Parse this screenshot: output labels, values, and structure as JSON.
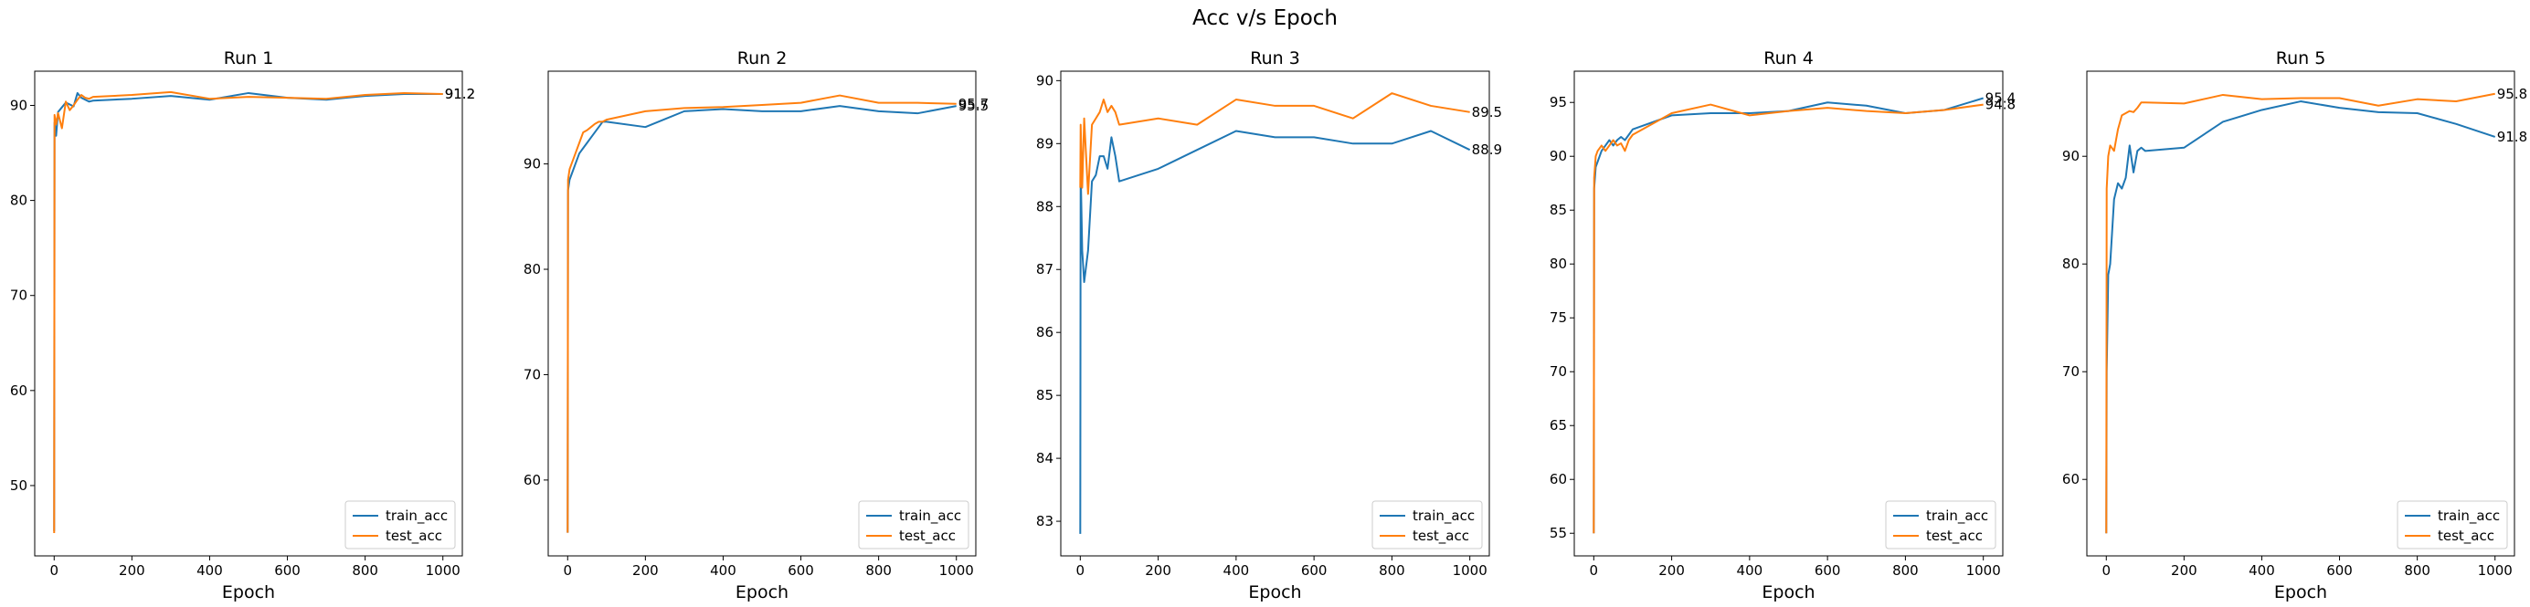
{
  "figure_title": "Acc v/s Epoch",
  "colors": {
    "train": "#1f77b4",
    "test": "#ff7f0e"
  },
  "chart_data": [
    {
      "type": "line",
      "title": "Run 1",
      "xlabel": "Epoch",
      "ylabel": "",
      "xlim": [
        -50,
        1050
      ],
      "ylim": [
        42.6,
        93.6
      ],
      "xticks": [
        0,
        200,
        400,
        600,
        800,
        1000
      ],
      "yticks": [
        50,
        60,
        70,
        80,
        90
      ],
      "legend": "lower-right",
      "series": [
        {
          "name": "train_acc",
          "x": [
            0,
            1,
            5,
            10,
            20,
            30,
            40,
            50,
            60,
            70,
            80,
            90,
            100,
            200,
            300,
            400,
            500,
            600,
            700,
            800,
            900,
            1000
          ],
          "y": [
            45.2,
            88.2,
            86.8,
            89.3,
            89.8,
            90.3,
            90.1,
            89.9,
            91.3,
            90.8,
            90.6,
            90.4,
            90.5,
            90.7,
            91.0,
            90.6,
            91.3,
            90.8,
            90.6,
            91.0,
            91.2,
            91.2
          ]
        },
        {
          "name": "test_acc",
          "x": [
            0,
            1,
            5,
            10,
            20,
            30,
            40,
            50,
            60,
            70,
            80,
            90,
            100,
            200,
            300,
            400,
            500,
            600,
            700,
            800,
            900,
            1000
          ],
          "y": [
            45.0,
            89.0,
            88.0,
            89.2,
            87.6,
            90.4,
            89.5,
            90.0,
            90.6,
            91.1,
            90.8,
            90.7,
            90.9,
            91.1,
            91.4,
            90.7,
            90.9,
            90.8,
            90.7,
            91.1,
            91.3,
            91.2
          ]
        }
      ],
      "end_labels": [
        "91.2",
        "91.2"
      ]
    },
    {
      "type": "line",
      "title": "Run 2",
      "xlabel": "Epoch",
      "ylabel": "",
      "xlim": [
        -50,
        1050
      ],
      "ylim": [
        52.8,
        98.8
      ],
      "xticks": [
        0,
        200,
        400,
        600,
        800,
        1000
      ],
      "yticks": [
        60,
        70,
        80,
        90
      ],
      "legend": "lower-right",
      "series": [
        {
          "name": "train_acc",
          "x": [
            0,
            1,
            5,
            10,
            20,
            30,
            40,
            50,
            60,
            70,
            80,
            90,
            100,
            200,
            300,
            400,
            500,
            600,
            700,
            800,
            900,
            1000
          ],
          "y": [
            55.0,
            87.5,
            88.5,
            89.0,
            90.0,
            91.0,
            91.5,
            92.0,
            92.5,
            93.0,
            93.5,
            94.0,
            94.0,
            93.5,
            95.0,
            95.2,
            95.0,
            95.0,
            95.5,
            95.0,
            94.8,
            95.5
          ]
        },
        {
          "name": "test_acc",
          "x": [
            0,
            1,
            5,
            10,
            20,
            30,
            40,
            50,
            60,
            70,
            80,
            90,
            100,
            200,
            300,
            400,
            500,
            600,
            700,
            800,
            900,
            1000
          ],
          "y": [
            55.0,
            88.5,
            89.5,
            90.0,
            91.0,
            92.0,
            93.0,
            93.2,
            93.5,
            93.8,
            94.0,
            94.0,
            94.2,
            95.0,
            95.3,
            95.4,
            95.6,
            95.8,
            96.5,
            95.8,
            95.8,
            95.7
          ]
        }
      ],
      "end_labels": [
        "95.5",
        "95.7"
      ]
    },
    {
      "type": "line",
      "title": "Run 3",
      "xlabel": "Epoch",
      "ylabel": "",
      "xlim": [
        -50,
        1050
      ],
      "ylim": [
        82.45,
        90.15
      ],
      "xticks": [
        0,
        200,
        400,
        600,
        800,
        1000
      ],
      "yticks": [
        83,
        84,
        85,
        86,
        87,
        88,
        89,
        90
      ],
      "legend": "lower-right",
      "series": [
        {
          "name": "train_acc",
          "x": [
            0,
            1,
            5,
            10,
            20,
            30,
            40,
            50,
            60,
            70,
            80,
            90,
            100,
            200,
            300,
            400,
            500,
            600,
            700,
            800,
            900,
            1000
          ],
          "y": [
            82.8,
            88.6,
            87.3,
            86.8,
            87.3,
            88.4,
            88.5,
            88.8,
            88.8,
            88.6,
            89.1,
            88.8,
            88.4,
            88.6,
            88.9,
            89.2,
            89.1,
            89.1,
            89.0,
            89.0,
            89.2,
            88.9
          ]
        },
        {
          "name": "test_acc",
          "x": [
            0,
            1,
            5,
            10,
            20,
            30,
            40,
            50,
            60,
            70,
            80,
            90,
            100,
            200,
            300,
            400,
            500,
            600,
            700,
            800,
            900,
            1000
          ],
          "y": [
            88.3,
            89.3,
            88.3,
            89.4,
            88.2,
            89.3,
            89.4,
            89.5,
            89.7,
            89.5,
            89.6,
            89.5,
            89.3,
            89.4,
            89.3,
            89.7,
            89.6,
            89.6,
            89.4,
            89.8,
            89.6,
            89.5
          ]
        }
      ],
      "end_labels": [
        "88.9",
        "89.5"
      ]
    },
    {
      "type": "line",
      "title": "Run 4",
      "xlabel": "Epoch",
      "ylabel": "",
      "xlim": [
        -50,
        1050
      ],
      "ylim": [
        52.9,
        97.9
      ],
      "xticks": [
        0,
        200,
        400,
        600,
        800,
        1000
      ],
      "yticks": [
        55,
        60,
        65,
        70,
        75,
        80,
        85,
        90,
        95
      ],
      "legend": "lower-right",
      "series": [
        {
          "name": "train_acc",
          "x": [
            0,
            1,
            5,
            10,
            20,
            30,
            40,
            50,
            60,
            70,
            80,
            90,
            100,
            200,
            300,
            400,
            500,
            600,
            700,
            800,
            900,
            1000
          ],
          "y": [
            55.0,
            87.0,
            89.0,
            89.5,
            90.5,
            91.0,
            91.5,
            91.0,
            91.5,
            91.8,
            91.5,
            92.0,
            92.5,
            93.8,
            94.0,
            94.0,
            94.2,
            95.0,
            94.7,
            94.0,
            94.3,
            95.4
          ]
        },
        {
          "name": "test_acc",
          "x": [
            0,
            1,
            5,
            10,
            20,
            30,
            40,
            50,
            60,
            70,
            80,
            90,
            100,
            200,
            300,
            400,
            500,
            600,
            700,
            800,
            900,
            1000
          ],
          "y": [
            55.0,
            88.0,
            90.0,
            90.5,
            91.0,
            90.5,
            91.0,
            91.5,
            91.0,
            91.2,
            90.5,
            91.5,
            92.0,
            94.0,
            94.8,
            93.8,
            94.2,
            94.5,
            94.2,
            94.0,
            94.3,
            94.8
          ]
        }
      ],
      "end_labels": [
        "95.4",
        "94.8"
      ]
    },
    {
      "type": "line",
      "title": "Run 5",
      "xlabel": "Epoch",
      "ylabel": "",
      "xlim": [
        -50,
        1050
      ],
      "ylim": [
        52.9,
        97.9
      ],
      "xticks": [
        0,
        200,
        400,
        600,
        800,
        1000
      ],
      "yticks": [
        60,
        70,
        80,
        90
      ],
      "legend": "lower-right",
      "series": [
        {
          "name": "train_acc",
          "x": [
            0,
            1,
            5,
            10,
            20,
            30,
            40,
            50,
            60,
            70,
            80,
            90,
            100,
            200,
            300,
            400,
            500,
            600,
            700,
            800,
            900,
            1000
          ],
          "y": [
            55.0,
            70.0,
            79.0,
            80.0,
            86.0,
            87.5,
            87.0,
            88.0,
            91.0,
            88.5,
            90.5,
            90.8,
            90.5,
            90.8,
            93.2,
            94.3,
            95.1,
            94.5,
            94.1,
            94.0,
            93.0,
            91.8
          ]
        },
        {
          "name": "test_acc",
          "x": [
            0,
            1,
            5,
            10,
            20,
            30,
            40,
            50,
            60,
            70,
            80,
            90,
            100,
            200,
            300,
            400,
            500,
            600,
            700,
            800,
            900,
            1000
          ],
          "y": [
            55.0,
            87.0,
            90.0,
            91.0,
            90.5,
            92.5,
            93.8,
            94.0,
            94.2,
            94.1,
            94.5,
            95.0,
            95.0,
            94.9,
            95.7,
            95.3,
            95.4,
            95.4,
            94.7,
            95.3,
            95.1,
            95.8
          ]
        }
      ],
      "end_labels": [
        "91.8",
        "95.8"
      ]
    }
  ]
}
